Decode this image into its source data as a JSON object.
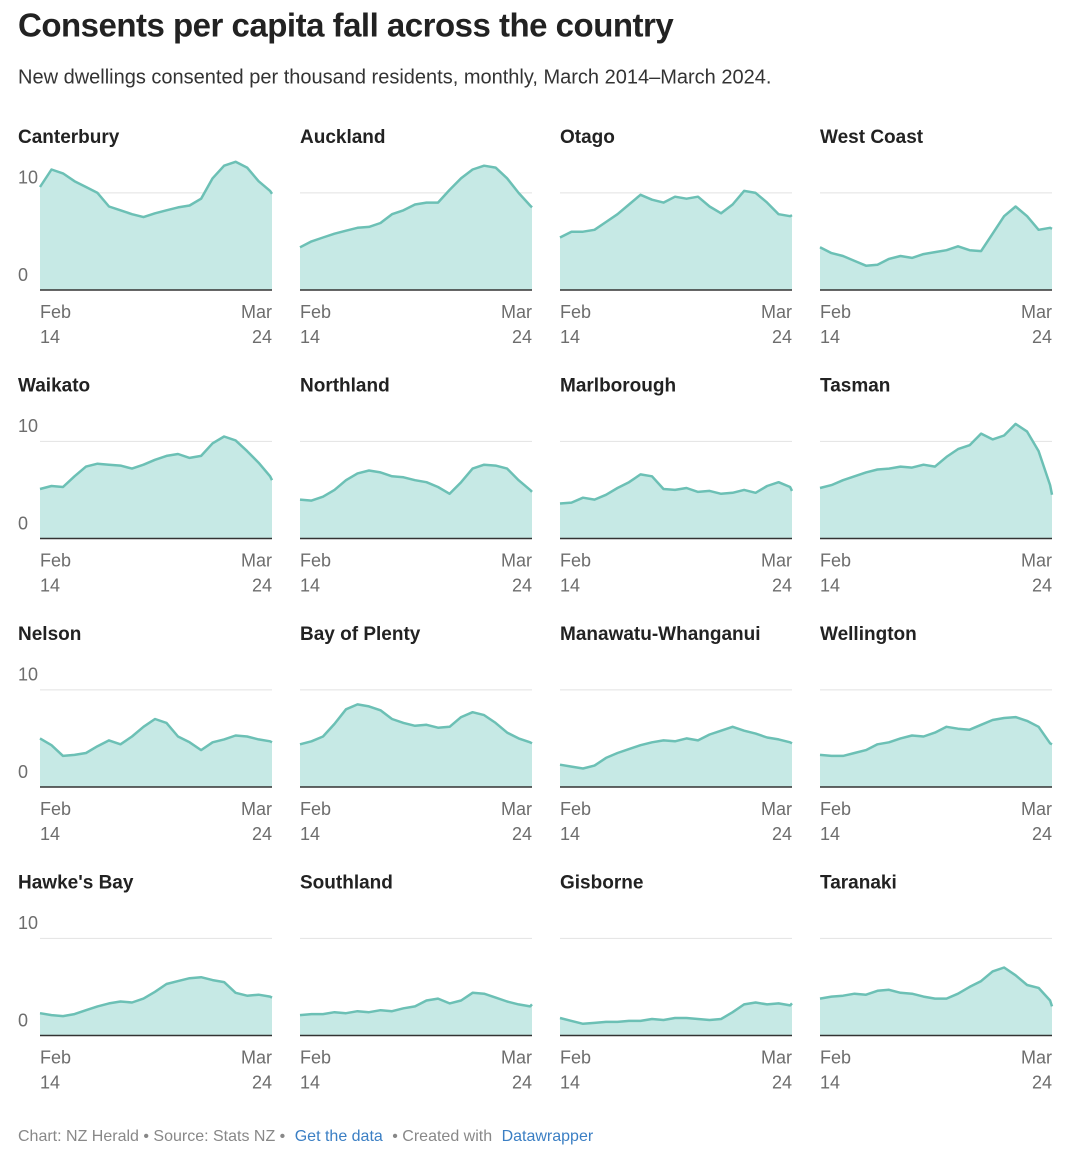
{
  "chart_data": {
    "type": "area",
    "title": "Consents per capita fall across the country",
    "subtitle": "New dwellings consented per thousand residents, monthly, March 2014–March 2024.",
    "line_color": "#6cc0b5",
    "fill_color": "#c6e9e5",
    "grid": true,
    "x": [
      "2014-02",
      "2014-08",
      "2015-02",
      "2015-08",
      "2016-02",
      "2016-08",
      "2017-02",
      "2017-08",
      "2018-02",
      "2018-08",
      "2019-02",
      "2019-08",
      "2020-02",
      "2020-08",
      "2021-02",
      "2021-08",
      "2022-02",
      "2022-08",
      "2023-02",
      "2023-08",
      "2024-02",
      "2024-03"
    ],
    "xlim": [
      "2014-02",
      "2024-03"
    ],
    "xticks": [
      {
        "value": "2014-02",
        "label": "Feb 14"
      },
      {
        "value": "2024-03",
        "label": "Mar 24"
      }
    ],
    "ylim": [
      0,
      14
    ],
    "yticks": [
      0,
      10
    ],
    "series": [
      {
        "name": "Canterbury",
        "values": [
          10.6,
          12.4,
          12.0,
          11.2,
          10.6,
          10.0,
          8.6,
          8.2,
          7.8,
          7.5,
          7.9,
          8.2,
          8.5,
          8.7,
          9.4,
          11.5,
          12.8,
          13.2,
          12.6,
          11.2,
          10.2,
          9.9
        ]
      },
      {
        "name": "Auckland",
        "values": [
          4.4,
          5.0,
          5.4,
          5.8,
          6.1,
          6.4,
          6.5,
          6.9,
          7.8,
          8.2,
          8.8,
          9.0,
          9.0,
          10.3,
          11.5,
          12.4,
          12.8,
          12.6,
          11.5,
          10.0,
          8.7,
          8.5
        ]
      },
      {
        "name": "Otago",
        "values": [
          5.4,
          6.0,
          6.0,
          6.2,
          7.0,
          7.8,
          8.8,
          9.8,
          9.3,
          9.0,
          9.6,
          9.4,
          9.6,
          8.6,
          7.9,
          8.8,
          10.2,
          10.0,
          9.0,
          7.8,
          7.6,
          7.7
        ]
      },
      {
        "name": "West Coast",
        "values": [
          4.4,
          3.8,
          3.5,
          3.0,
          2.5,
          2.6,
          3.2,
          3.5,
          3.3,
          3.7,
          3.9,
          4.1,
          4.5,
          4.1,
          4.0,
          5.8,
          7.6,
          8.6,
          7.6,
          6.2,
          6.4,
          6.3
        ]
      },
      {
        "name": "Waikato",
        "values": [
          5.1,
          5.4,
          5.3,
          6.4,
          7.4,
          7.7,
          7.6,
          7.5,
          7.2,
          7.6,
          8.1,
          8.5,
          8.7,
          8.3,
          8.5,
          9.8,
          10.5,
          10.1,
          9.0,
          7.8,
          6.4,
          6.0
        ]
      },
      {
        "name": "Northland",
        "values": [
          4.0,
          3.9,
          4.3,
          5.0,
          6.0,
          6.7,
          7.0,
          6.8,
          6.4,
          6.3,
          6.0,
          5.8,
          5.3,
          4.6,
          5.8,
          7.2,
          7.6,
          7.5,
          7.2,
          6.0,
          5.0,
          4.8
        ]
      },
      {
        "name": "Marlborough",
        "values": [
          3.6,
          3.7,
          4.2,
          4.0,
          4.5,
          5.2,
          5.8,
          6.6,
          6.4,
          5.1,
          5.0,
          5.2,
          4.8,
          4.9,
          4.6,
          4.7,
          5.0,
          4.7,
          5.4,
          5.8,
          5.3,
          4.9
        ]
      },
      {
        "name": "Tasman",
        "values": [
          5.2,
          5.5,
          6.0,
          6.4,
          6.8,
          7.1,
          7.2,
          7.4,
          7.3,
          7.6,
          7.4,
          8.4,
          9.2,
          9.6,
          10.8,
          10.2,
          10.6,
          11.8,
          11.0,
          9.0,
          5.5,
          4.5
        ]
      },
      {
        "name": "Nelson",
        "values": [
          5.0,
          4.3,
          3.2,
          3.3,
          3.5,
          4.2,
          4.8,
          4.4,
          5.2,
          6.2,
          7.0,
          6.6,
          5.2,
          4.6,
          3.8,
          4.6,
          4.9,
          5.3,
          5.2,
          4.9,
          4.7,
          4.6
        ]
      },
      {
        "name": "Bay of Plenty",
        "values": [
          4.4,
          4.7,
          5.2,
          6.5,
          8.0,
          8.5,
          8.3,
          7.9,
          7.0,
          6.6,
          6.3,
          6.4,
          6.1,
          6.2,
          7.2,
          7.7,
          7.4,
          6.6,
          5.6,
          5.0,
          4.6,
          4.5
        ]
      },
      {
        "name": "Manawatu-Whanganui",
        "values": [
          2.3,
          2.1,
          1.9,
          2.2,
          3.0,
          3.5,
          3.9,
          4.3,
          4.6,
          4.8,
          4.7,
          5.0,
          4.8,
          5.4,
          5.8,
          6.2,
          5.8,
          5.5,
          5.1,
          4.9,
          4.6,
          4.5
        ]
      },
      {
        "name": "Wellington",
        "values": [
          3.3,
          3.2,
          3.2,
          3.5,
          3.8,
          4.4,
          4.6,
          5.0,
          5.3,
          5.2,
          5.6,
          6.2,
          6.0,
          5.9,
          6.4,
          6.9,
          7.1,
          7.2,
          6.8,
          6.2,
          4.5,
          4.4
        ]
      },
      {
        "name": "Hawke's Bay",
        "values": [
          2.3,
          2.1,
          2.0,
          2.2,
          2.6,
          3.0,
          3.3,
          3.5,
          3.4,
          3.8,
          4.5,
          5.3,
          5.6,
          5.9,
          6.0,
          5.7,
          5.5,
          4.4,
          4.1,
          4.2,
          4.0,
          3.9
        ]
      },
      {
        "name": "Southland",
        "values": [
          2.1,
          2.2,
          2.2,
          2.4,
          2.3,
          2.5,
          2.4,
          2.6,
          2.5,
          2.8,
          3.0,
          3.6,
          3.8,
          3.3,
          3.6,
          4.4,
          4.3,
          3.9,
          3.5,
          3.2,
          3.0,
          3.2
        ]
      },
      {
        "name": "Gisborne",
        "values": [
          1.8,
          1.5,
          1.2,
          1.3,
          1.4,
          1.4,
          1.5,
          1.5,
          1.7,
          1.6,
          1.8,
          1.8,
          1.7,
          1.6,
          1.7,
          2.4,
          3.2,
          3.4,
          3.2,
          3.3,
          3.1,
          3.3
        ]
      },
      {
        "name": "Taranaki",
        "values": [
          3.8,
          4.0,
          4.1,
          4.3,
          4.2,
          4.6,
          4.7,
          4.4,
          4.3,
          4.0,
          3.8,
          3.8,
          4.3,
          5.0,
          5.6,
          6.6,
          7.0,
          6.2,
          5.2,
          4.9,
          3.6,
          3.0
        ]
      }
    ],
    "footer": {
      "text": "Chart: NZ Herald • Source: Stats NZ •",
      "link": "Get the data",
      "tool_text": "• Created with",
      "tool_link": "Datawrapper"
    }
  }
}
